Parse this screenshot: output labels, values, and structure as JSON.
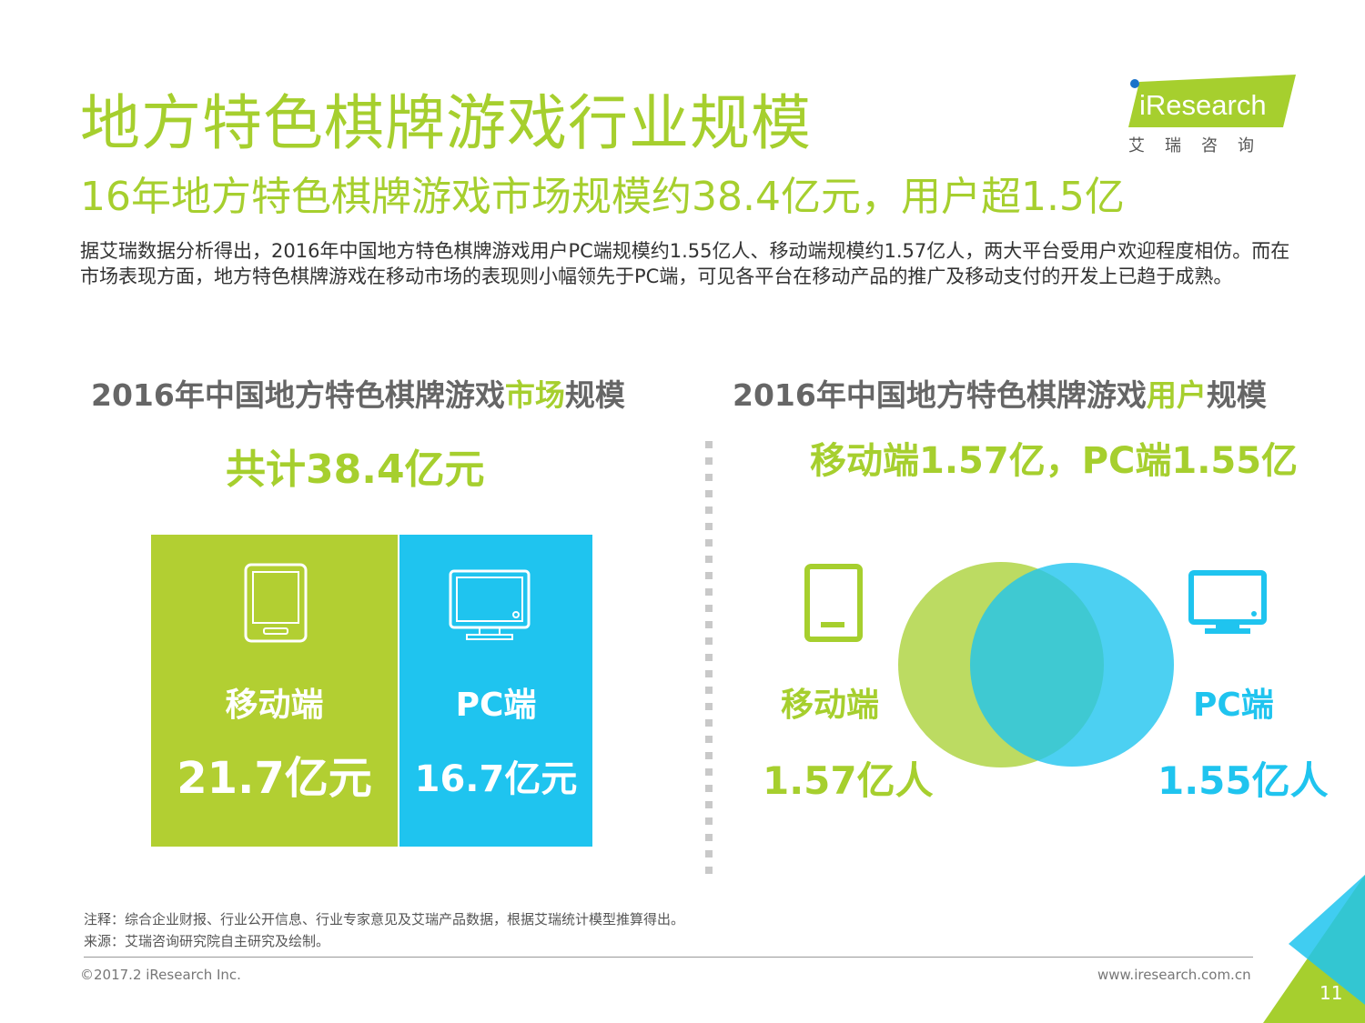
{
  "header": {
    "title": "地方特色棋牌游戏行业规模",
    "subtitle": "16年地方特色棋牌游戏市场规模约38.4亿元，用户超1.5亿",
    "intro": "据艾瑞数据分析得出，2016年中国地方特色棋牌游戏用户PC端规模约1.55亿人、移动端规模约1.57亿人，两大平台受用户欢迎程度相仿。而在市场表现方面，地方特色棋牌游戏在移动市场的表现则小幅领先于PC端，可见各平台在移动产品的推广及移动支付的开发上已趋于成熟。"
  },
  "logo": {
    "brand": "iResearch",
    "cn": "艾瑞咨询"
  },
  "market": {
    "title_prefix": "2016年中国地方特色棋牌游戏",
    "title_highlight": "市场",
    "title_suffix": "规模",
    "total": "共计38.4亿元",
    "mobile_label": "移动端",
    "mobile_value": "21.7亿元",
    "pc_label": "PC端",
    "pc_value": "16.7亿元"
  },
  "users": {
    "title_prefix": "2016年中国地方特色棋牌游戏",
    "title_highlight": "用户",
    "title_suffix": "规模",
    "total": "移动端1.57亿，PC端1.55亿",
    "mobile_label": "移动端",
    "mobile_value": "1.57亿人",
    "pc_label": "PC端",
    "pc_value": "1.55亿人"
  },
  "colors": {
    "green": "#a6cf2e",
    "blue": "#1fc4ef"
  },
  "icons": {
    "mobile": "tablet-icon",
    "pc": "monitor-icon"
  },
  "footer": {
    "note": "注释：综合企业财报、行业公开信息、行业专家意见及艾瑞产品数据，根据艾瑞统计模型推算得出。",
    "source": "来源：艾瑞咨询研究院自主研究及绘制。",
    "copyright": "©2017.2 iResearch Inc.",
    "website": "www.iresearch.com.cn",
    "page_number": "11"
  }
}
